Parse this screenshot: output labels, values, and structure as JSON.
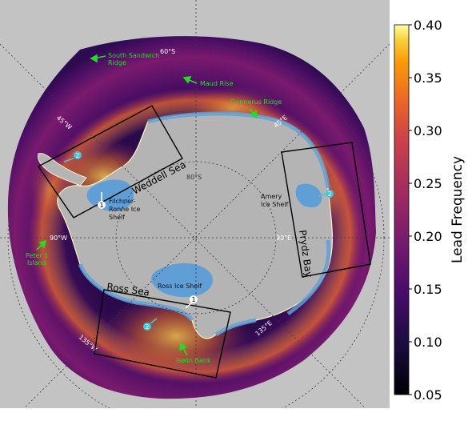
{
  "map": {
    "graticule_labels": [
      "60°S",
      "45°E",
      "90°E",
      "135°E",
      "135°W",
      "90°W",
      "45°W",
      "80°S"
    ],
    "region_labels": {
      "weddell": "Weddell Sea",
      "prydz": "Prydz Bay",
      "ross": "Ross Sea"
    },
    "feature_labels": {
      "south_sandwich": [
        "South Sandwich",
        "Ridge"
      ],
      "maud_rise": "Maud Rise",
      "gunnerus": "Gunnerus Ridge",
      "peter1": [
        "Peter 1",
        "Island"
      ],
      "iselin": "Iselin Bank"
    },
    "shelf_labels": {
      "filchner": [
        "Filchner-",
        "Ronne Ice",
        "Shelf"
      ],
      "amery": [
        "Amery",
        "Ice Shelf"
      ],
      "ross": "Ross Ice Shelf"
    },
    "markers": {
      "weddell_1": "1",
      "weddell_2": "2",
      "prydz_2": "2",
      "ross_1": "1",
      "ross_2": "2"
    }
  },
  "colorbar": {
    "label": "Lead Frequency",
    "ticks": [
      "0.40",
      "0.35",
      "0.30",
      "0.25",
      "0.20",
      "0.15",
      "0.10",
      "0.05"
    ],
    "range": [
      0.05,
      0.4
    ],
    "colormap": "inferno"
  },
  "colors": {
    "land": "#b4b4b4",
    "ice_shelf": "#5f9fd6",
    "background": "#c3c3c3",
    "annotation_green": "#22dd22",
    "marker_cyan": "#40c8e0"
  }
}
